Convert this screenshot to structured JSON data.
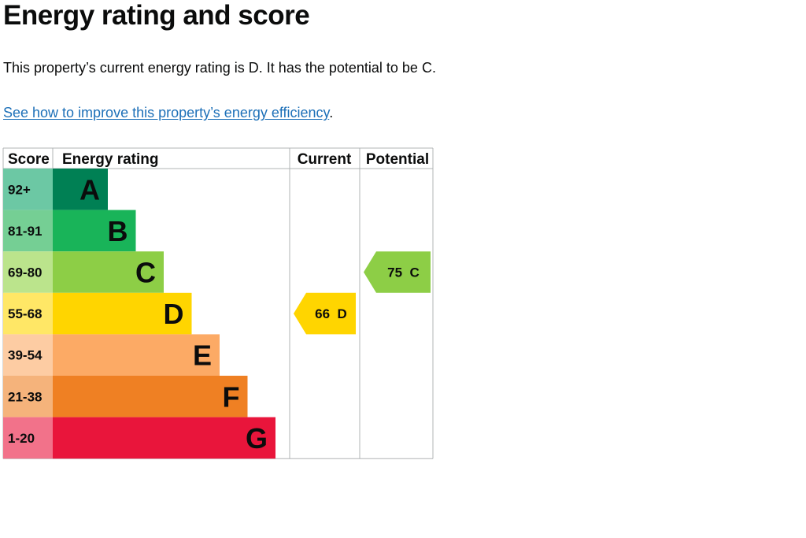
{
  "page": {
    "heading": "Energy rating and score",
    "summary": "This property’s current energy rating is D. It has the potential to be C.",
    "link_text": "See how to improve this property’s energy efficiency",
    "link_suffix": "."
  },
  "chart_data": {
    "type": "bar",
    "headers": {
      "score": "Score",
      "rating": "Energy rating",
      "current": "Current",
      "potential": "Potential"
    },
    "bands": [
      {
        "band": "A",
        "range": "92+",
        "min": 92,
        "max": 100,
        "color": "#008054",
        "score_bg": "#6cc8a4"
      },
      {
        "band": "B",
        "range": "81-91",
        "min": 81,
        "max": 91,
        "color": "#19b459",
        "score_bg": "#75cf94"
      },
      {
        "band": "C",
        "range": "69-80",
        "min": 69,
        "max": 80,
        "color": "#8dce46",
        "score_bg": "#bbe48c"
      },
      {
        "band": "D",
        "range": "55-68",
        "min": 55,
        "max": 68,
        "color": "#ffd500",
        "score_bg": "#ffe766"
      },
      {
        "band": "E",
        "range": "39-54",
        "min": 39,
        "max": 54,
        "color": "#fcaa65",
        "score_bg": "#fdcca3"
      },
      {
        "band": "F",
        "range": "21-38",
        "min": 21,
        "max": 38,
        "color": "#ef8023",
        "score_bg": "#f5b37b"
      },
      {
        "band": "G",
        "range": "1-20",
        "min": 1,
        "max": 20,
        "color": "#e9153b",
        "score_bg": "#f2728a"
      }
    ],
    "current": {
      "score": 66,
      "band": "D",
      "label": "66  D",
      "color": "#ffd500"
    },
    "potential": {
      "score": 75,
      "band": "C",
      "label": "75  C",
      "color": "#8dce46"
    }
  },
  "colors": {
    "link": "#1d70b8",
    "grid": "#b1b4b6"
  }
}
